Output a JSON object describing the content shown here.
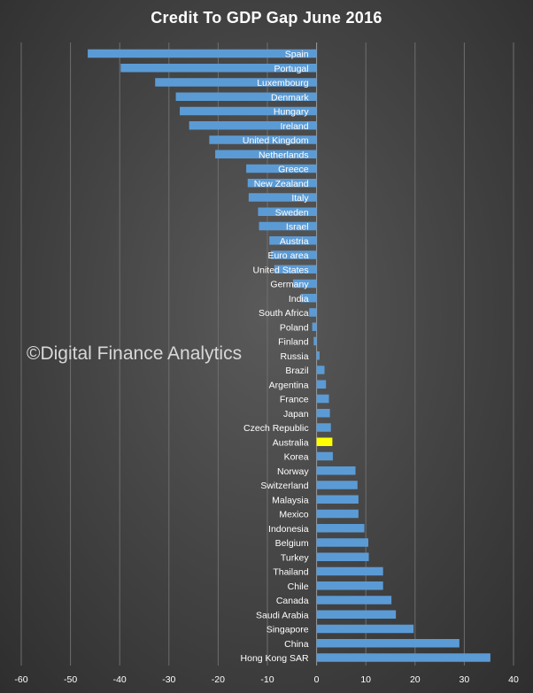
{
  "chart_data": {
    "type": "bar",
    "orientation": "horizontal",
    "title": "Credit To GDP Gap June 2016",
    "watermark": "©Digital Finance Analytics",
    "xlim": [
      -60,
      40
    ],
    "xticks": [
      -60,
      -50,
      -40,
      -30,
      -20,
      -10,
      0,
      10,
      20,
      30,
      40
    ],
    "grid": "vertical",
    "colors": {
      "bar": "#5b9bd5",
      "highlight": "#ffff00"
    },
    "highlight": "Australia",
    "categories": [
      "Spain",
      "Portugal",
      "Luxembourg",
      "Denmark",
      "Hungary",
      "Ireland",
      "United Kingdom",
      "Netherlands",
      "Greece",
      "New Zealand",
      "Italy",
      "Sweden",
      "Israel",
      "Austria",
      "Euro area",
      "United States",
      "Germany",
      "India",
      "South Africa",
      "Poland",
      "Finland",
      "Russia",
      "Brazil",
      "Argentina",
      "France",
      "Japan",
      "Czech Republic",
      "Australia",
      "Korea",
      "Norway",
      "Switzerland",
      "Malaysia",
      "Mexico",
      "Indonesia",
      "Belgium",
      "Turkey",
      "Thailand",
      "Chile",
      "Canada",
      "Saudi Arabia",
      "Singapore",
      "China",
      "Hong Kong SAR"
    ],
    "values": [
      -46.5,
      -39.8,
      -32.8,
      -28.6,
      -27.8,
      -25.9,
      -21.8,
      -20.6,
      -14.3,
      -14.0,
      -13.8,
      -11.9,
      -11.7,
      -9.6,
      -9.3,
      -8.6,
      -4.8,
      -3.2,
      -1.5,
      -0.9,
      -0.6,
      0.6,
      1.6,
      1.9,
      2.5,
      2.7,
      2.9,
      3.2,
      3.3,
      7.9,
      8.3,
      8.5,
      8.5,
      9.7,
      10.5,
      10.6,
      13.5,
      13.5,
      15.2,
      16.1,
      19.7,
      29.0,
      35.3
    ]
  }
}
